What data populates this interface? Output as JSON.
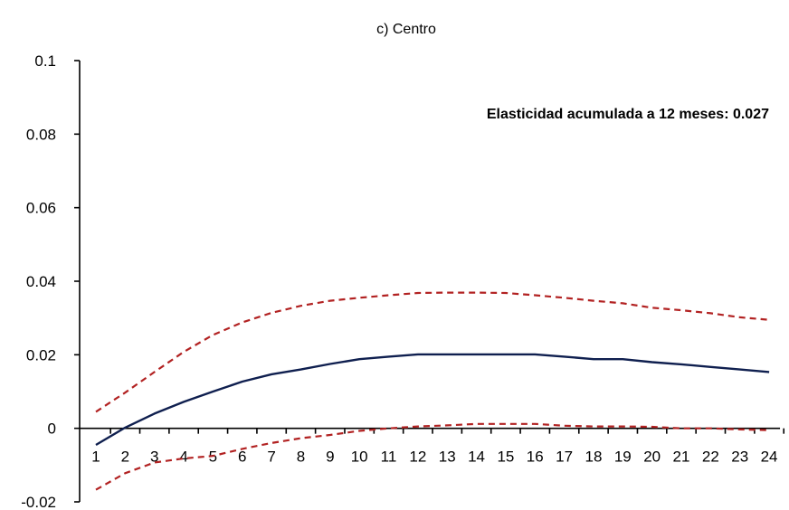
{
  "chart_data": {
    "type": "line",
    "title": "c) Centro",
    "annotation": "Elasticidad  acumulada  a  12 meses: 0.027",
    "x": [
      1,
      2,
      3,
      4,
      5,
      6,
      7,
      8,
      9,
      10,
      11,
      12,
      13,
      14,
      15,
      16,
      17,
      18,
      19,
      20,
      21,
      22,
      23,
      24
    ],
    "ylim": [
      -0.02,
      0.1
    ],
    "yticks": [
      "0.1",
      "0.08",
      "0.06",
      "0.04",
      "0.02",
      "0",
      "-0.02"
    ],
    "ytick_values": [
      0.1,
      0.08,
      0.06,
      0.04,
      0.02,
      0,
      -0.02
    ],
    "grid": false,
    "series": [
      {
        "style": "solid",
        "color": "#0f1f4f",
        "values": [
          -0.0045,
          0.0002,
          0.004,
          0.0072,
          0.01,
          0.0127,
          0.0147,
          0.016,
          0.0175,
          0.0188,
          0.0195,
          0.0201,
          0.0201,
          0.0201,
          0.0201,
          0.0201,
          0.0195,
          0.0188,
          0.0188,
          0.018,
          0.0174,
          0.0167,
          0.016,
          0.0153
        ]
      },
      {
        "style": "dashed",
        "color": "#b22222",
        "values": [
          0.0045,
          0.0097,
          0.0153,
          0.0208,
          0.0254,
          0.0288,
          0.0314,
          0.0333,
          0.0347,
          0.0355,
          0.0362,
          0.0368,
          0.0369,
          0.0369,
          0.0368,
          0.0362,
          0.0355,
          0.0347,
          0.034,
          0.0328,
          0.0321,
          0.0313,
          0.0302,
          0.0295
        ]
      },
      {
        "style": "dashed",
        "color": "#b22222",
        "values": [
          -0.0167,
          -0.0122,
          -0.0093,
          -0.0082,
          -0.0075,
          -0.0056,
          -0.004,
          -0.0027,
          -0.0018,
          -0.0007,
          0.0,
          0.0005,
          0.0008,
          0.0012,
          0.0012,
          0.0012,
          0.0007,
          0.0005,
          0.0005,
          0.0004,
          0.0,
          0.0,
          -0.0003,
          -0.0005
        ]
      }
    ]
  }
}
